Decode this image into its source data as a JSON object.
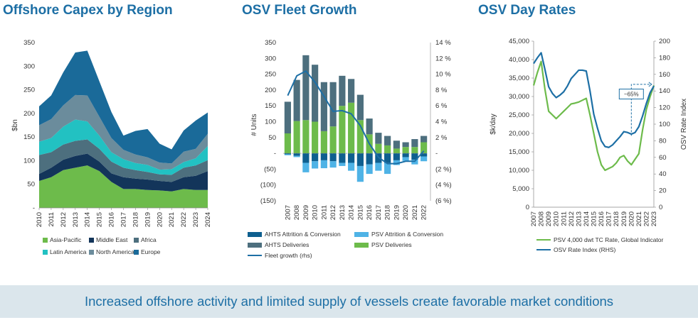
{
  "footer": {
    "text": "Increased offshore activity and limited supply of vessels create favorable market conditions"
  },
  "chart_data": [
    {
      "type": "area",
      "title": "Offshore Capex by Region",
      "ylabel": "$bn",
      "xlabel": "",
      "ylim": [
        0,
        350
      ],
      "yticks": [
        0,
        50,
        100,
        150,
        200,
        250,
        300,
        350
      ],
      "ytick_labels": [
        "-",
        "50",
        "100",
        "150",
        "200",
        "250",
        "300",
        "350"
      ],
      "categories": [
        "2010",
        "2011",
        "2012",
        "2013",
        "2014",
        "2015",
        "2016",
        "2017",
        "2018",
        "2019",
        "2020",
        "2021",
        "2022",
        "2023",
        "2024"
      ],
      "stacked": true,
      "legend_position": "bottom",
      "series": [
        {
          "name": "Asia-Pacific",
          "color": "#6dbb4b",
          "values": [
            57,
            65,
            80,
            85,
            90,
            78,
            55,
            40,
            40,
            38,
            37,
            35,
            40,
            38,
            38
          ]
        },
        {
          "name": "Middle East",
          "color": "#13355a",
          "values": [
            15,
            20,
            22,
            25,
            25,
            20,
            18,
            25,
            22,
            22,
            20,
            20,
            25,
            30,
            40
          ]
        },
        {
          "name": "Africa",
          "color": "#4d6f7e",
          "values": [
            40,
            33,
            32,
            32,
            30,
            27,
            25,
            20,
            18,
            16,
            14,
            15,
            20,
            22,
            23
          ]
        },
        {
          "name": "Latin America",
          "color": "#22c1c2",
          "values": [
            28,
            30,
            38,
            45,
            38,
            28,
            20,
            18,
            15,
            15,
            10,
            12,
            12,
            15,
            30
          ]
        },
        {
          "name": "North America",
          "color": "#6b8c9c",
          "values": [
            35,
            40,
            45,
            52,
            55,
            40,
            30,
            20,
            18,
            16,
            15,
            12,
            22,
            20,
            26
          ]
        },
        {
          "name": "Europe",
          "color": "#1a6a99",
          "values": [
            40,
            50,
            70,
            90,
            95,
            75,
            55,
            30,
            50,
            60,
            40,
            30,
            45,
            60,
            45
          ]
        }
      ]
    },
    {
      "type": "bar",
      "title": "OSV Fleet Growth",
      "ylabel": "# Units",
      "y2label": "",
      "ylim": [
        -150,
        350
      ],
      "yticks": [
        -150,
        -100,
        -50,
        0,
        50,
        100,
        150,
        200,
        250,
        300,
        350
      ],
      "ytick_labels": [
        "(150)",
        "(100)",
        "(50)",
        "-",
        "50",
        "100",
        "150",
        "200",
        "250",
        "300",
        "350"
      ],
      "y2lim": [
        -6,
        14
      ],
      "y2ticks": [
        -6,
        -4,
        -2,
        0,
        2,
        4,
        6,
        8,
        10,
        12,
        14
      ],
      "y2tick_labels": [
        "(6 %)",
        "(4 %)",
        "(2 %)",
        "-",
        "2 %",
        "4 %",
        "6 %",
        "8 %",
        "10 %",
        "12 %",
        "14 %"
      ],
      "categories": [
        "2007",
        "2008",
        "2009",
        "2010",
        "2011",
        "2012",
        "2013",
        "2014",
        "2015",
        "2016",
        "2017",
        "2018",
        "2019",
        "2020",
        "2021",
        "2022"
      ],
      "stacked": true,
      "legend_position": "bottom",
      "series": [
        {
          "name": "AHTS Attrition & Conversion",
          "color": "#0e5f8f",
          "values": [
            -3,
            -8,
            -30,
            -25,
            -22,
            -25,
            -30,
            -30,
            -40,
            -35,
            -30,
            -30,
            -22,
            -12,
            -20,
            -10
          ]
        },
        {
          "name": "PSV Attrition & Conversion",
          "color": "#4fb3e6",
          "values": [
            -3,
            -4,
            -30,
            -23,
            -25,
            -20,
            -10,
            -25,
            -50,
            -30,
            -25,
            -35,
            -15,
            -12,
            -15,
            -15
          ]
        },
        {
          "name": "AHTS Deliveries",
          "color": "#4d6f7e",
          "values": [
            100,
            130,
            205,
            180,
            155,
            140,
            95,
            75,
            80,
            50,
            35,
            30,
            25,
            15,
            25,
            20
          ]
        },
        {
          "name": "PSV Deliveries",
          "color": "#6dbb4b",
          "values": [
            63,
            102,
            105,
            100,
            70,
            85,
            150,
            160,
            105,
            60,
            30,
            25,
            15,
            20,
            20,
            35
          ]
        },
        {
          "name": "Fleet growth (rhs)",
          "color": "#1d6fa5",
          "type": "line",
          "axis": "right",
          "values": [
            7.3,
            9.8,
            10.4,
            9.0,
            7.2,
            5.3,
            5.4,
            5.0,
            3.5,
            1.2,
            -0.5,
            -1.3,
            -1.3,
            -1.0,
            -1.0,
            0.3
          ]
        }
      ]
    },
    {
      "type": "line",
      "title": "OSV Day Rates",
      "ylabel": "$k/day",
      "y2label": "OSV Rate Index",
      "ylim": [
        0,
        45000
      ],
      "yticks": [
        0,
        5000,
        10000,
        15000,
        20000,
        25000,
        30000,
        35000,
        40000,
        45000
      ],
      "ytick_labels": [
        "0",
        "5,000",
        "10,000",
        "15,000",
        "20,000",
        "25,000",
        "30,000",
        "35,000",
        "40,000",
        "45,000"
      ],
      "y2lim": [
        0,
        200
      ],
      "y2ticks": [
        0,
        20,
        40,
        60,
        80,
        100,
        120,
        140,
        160,
        180,
        200
      ],
      "y2tick_labels": [
        "0",
        "20",
        "40",
        "60",
        "80",
        "100",
        "120",
        "140",
        "160",
        "180",
        "200"
      ],
      "x": [
        2007,
        2007.5,
        2008,
        2008.5,
        2009,
        2009.5,
        2010,
        2010.5,
        2011,
        2011.5,
        2012,
        2012.5,
        2013,
        2013.5,
        2014,
        2014.5,
        2015,
        2015.5,
        2016,
        2016.5,
        2017,
        2017.5,
        2018,
        2018.5,
        2019,
        2019.5,
        2020,
        2020.5,
        2021,
        2021.5,
        2022,
        2022.5,
        2023
      ],
      "x_tick_labels": [
        "2007",
        "2008",
        "2009",
        "2010",
        "2011",
        "2012",
        "2013",
        "2014",
        "2015",
        "2016",
        "2017",
        "2018",
        "2019",
        "2020",
        "2021",
        "2022",
        "2023"
      ],
      "annotation": "~65%",
      "legend_position": "bottom",
      "series": [
        {
          "name": "PSV 4,000 dwt TC Rate, Global Indicator",
          "color": "#6dbb4b",
          "axis": "left",
          "values": [
            33000,
            36500,
            39500,
            32000,
            26000,
            25000,
            24000,
            25000,
            26000,
            27000,
            28000,
            28200,
            28500,
            29000,
            29500,
            25000,
            20000,
            15000,
            11500,
            10000,
            10500,
            11000,
            12000,
            13500,
            14000,
            12500,
            11500,
            13000,
            14500,
            21000,
            26500,
            30000,
            33000
          ]
        },
        {
          "name": "OSV Rate Index (RHS)",
          "color": "#1d6fa5",
          "axis": "right",
          "values": [
            173,
            180,
            186,
            166,
            145,
            137,
            132,
            135,
            139,
            146,
            155,
            160,
            165,
            165,
            164,
            140,
            112,
            95,
            80,
            73,
            72,
            75,
            80,
            85,
            91,
            90,
            88,
            90,
            97,
            110,
            125,
            138,
            146
          ]
        }
      ]
    }
  ]
}
